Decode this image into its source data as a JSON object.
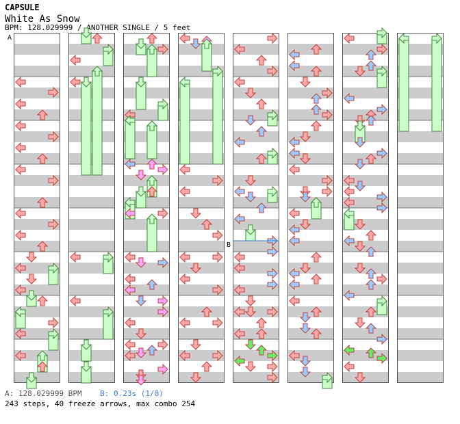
{
  "header": {
    "artist": "CAPSULE",
    "title": "White As Snow",
    "info": "BPM: 128.029999 / ANOTHER SINGLE / 5 feet"
  },
  "markers": {
    "a": "A",
    "b": "B"
  },
  "footer": {
    "bpm_label": "A: 128.029999 BPM",
    "stop_label": "B: 0.23s (1/8)",
    "summary": "243 steps, 40 freeze arrows, max combo 254"
  },
  "colors": {
    "red_arrow": "#ffaaaa",
    "blue_arrow": "#99ccff",
    "pink_arrow": "#ffaaff",
    "green_arrow": "#66ee66",
    "freeze": "#ccffcc",
    "stripe": "#cccccc"
  },
  "chart_data": {
    "type": "step-chart",
    "columns": 8,
    "lanes": [
      "left",
      "down",
      "up",
      "right"
    ],
    "measures_per_column": 7,
    "steps": 243,
    "freeze_arrows": 40,
    "max_combo": 254,
    "bpm": 128.029999
  }
}
